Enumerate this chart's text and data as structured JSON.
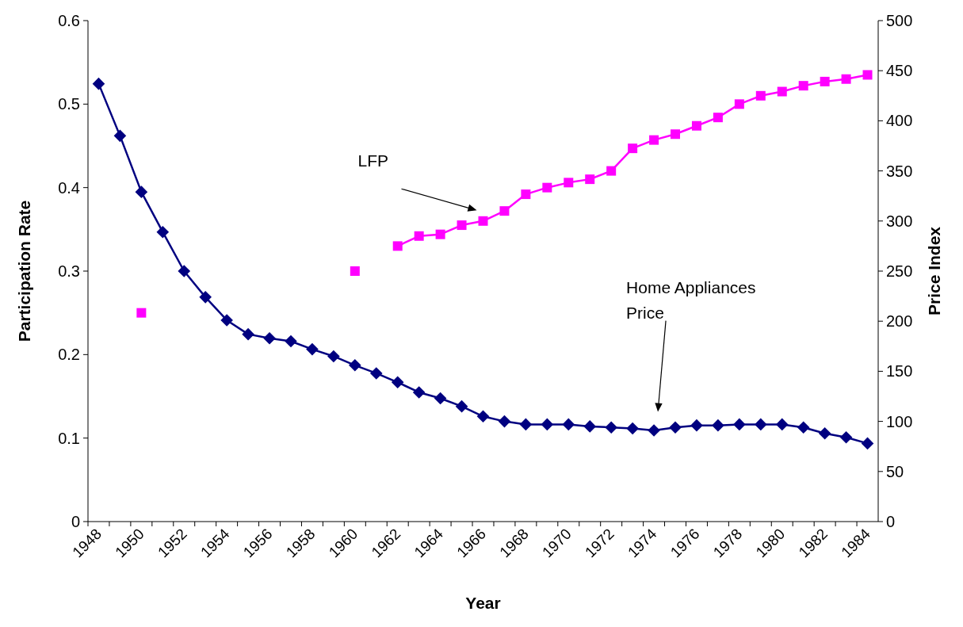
{
  "chart_data": {
    "type": "line",
    "xlabel": "Year",
    "ylabel": "Participation Rate",
    "y2label": "Price Index",
    "categories": [
      "1948",
      null,
      "1950",
      null,
      "1952",
      null,
      "1954",
      null,
      "1956",
      null,
      "1958",
      null,
      "1960",
      null,
      "1962",
      null,
      "1964",
      null,
      "1966",
      null,
      "1968",
      null,
      "1970",
      null,
      "1972",
      null,
      "1974",
      null,
      "1976",
      null,
      "1978",
      null,
      "1980",
      null,
      "1982",
      null,
      "1984"
    ],
    "series": [
      {
        "color": "#ff00ff",
        "marker": "square",
        "values": [
          null,
          null,
          0.25,
          null,
          null,
          null,
          null,
          null,
          null,
          null,
          null,
          null,
          0.3,
          null,
          0.33,
          0.342,
          0.344,
          0.355,
          0.36,
          0.372,
          0.392,
          0.4,
          0.406,
          0.41,
          0.42,
          0.447,
          0.457,
          0.464,
          0.474,
          0.484,
          0.5,
          0.51,
          0.515,
          0.522,
          0.527,
          0.53,
          0.535
        ]
      },
      {
        "color": "#000080",
        "marker": "diamond",
        "axis": "y2",
        "values": [
          437,
          385,
          329,
          289,
          250,
          224,
          201,
          187,
          183,
          180,
          172,
          165,
          156,
          148,
          139,
          129,
          123,
          115,
          105,
          100,
          97,
          97,
          97,
          95,
          94,
          93,
          91,
          94,
          96,
          96,
          97,
          97,
          97,
          94,
          88,
          84,
          78
        ]
      }
    ],
    "annotations": [
      "LFP",
      "Home Appliances Price"
    ],
    "ylim": [
      0,
      0.6
    ],
    "yticks": [
      0,
      0.1,
      0.2,
      0.3,
      0.4,
      0.5,
      0.6
    ],
    "y2lim": [
      0,
      500
    ],
    "y2ticks": [
      0,
      50,
      100,
      150,
      200,
      250,
      300,
      350,
      400,
      450,
      500
    ],
    "grid": false
  }
}
